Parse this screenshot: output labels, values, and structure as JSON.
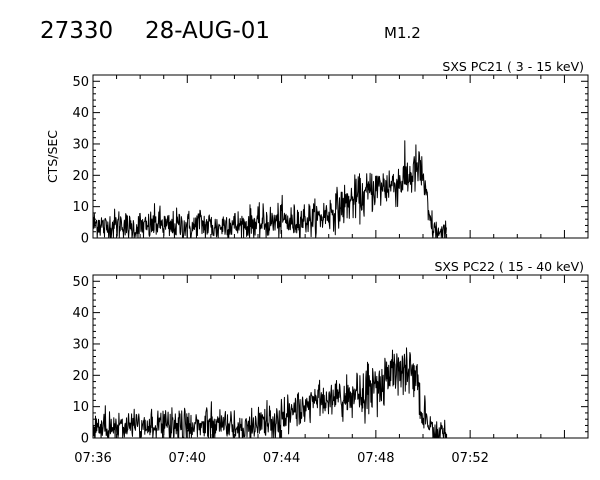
{
  "header": {
    "obs_id": "27330",
    "date": "28-AUG-01",
    "flare_class": "M1.2"
  },
  "colors": {
    "line": "#000000",
    "background": "#ffffff"
  },
  "chart_data": [
    {
      "type": "line",
      "title": "SXS PC21  (  3 - 15 keV)",
      "ylabel": "CTS/SEC",
      "xlabel": "",
      "xlim": [
        "07:36",
        "07:57"
      ],
      "ylim": [
        0,
        52
      ],
      "yticks": [
        0,
        10,
        20,
        30,
        40,
        50
      ],
      "xticks": [
        "07:36",
        "07:40",
        "07:44",
        "07:48",
        "07:52"
      ],
      "show_xtick_labels": false,
      "grid": false,
      "series": [
        {
          "values_start": "07:36",
          "values_step_minutes": 0.25,
          "values": [
            4,
            5,
            3,
            4,
            4,
            5,
            3,
            3,
            4,
            3,
            4,
            5,
            4,
            3,
            4,
            4,
            4,
            3,
            5,
            4,
            4,
            3,
            4,
            5,
            4,
            4,
            4,
            5,
            4,
            5,
            5,
            5,
            6,
            5,
            5,
            6,
            6,
            6,
            6,
            7,
            8,
            9,
            10,
            11,
            12,
            13,
            13,
            15,
            16,
            16,
            17,
            17,
            18,
            19,
            20,
            22,
            20,
            6,
            2,
            1,
            1
          ]
        }
      ]
    },
    {
      "type": "line",
      "title": "SXS PC22  ( 15 - 40 keV)",
      "ylabel": "",
      "xlabel": "",
      "xlim": [
        "07:36",
        "07:57"
      ],
      "ylim": [
        0,
        52
      ],
      "yticks": [
        0,
        10,
        20,
        30,
        40,
        50
      ],
      "xticks": [
        "07:36",
        "07:40",
        "07:44",
        "07:48",
        "07:52"
      ],
      "show_xtick_labels": true,
      "grid": false,
      "series": [
        {
          "values_start": "07:36",
          "values_step_minutes": 0.25,
          "values": [
            4,
            3,
            4,
            4,
            3,
            4,
            4,
            3,
            4,
            3,
            4,
            4,
            4,
            3,
            4,
            3,
            4,
            4,
            3,
            4,
            4,
            3,
            4,
            4,
            3,
            4,
            4,
            4,
            5,
            5,
            6,
            6,
            7,
            7,
            8,
            9,
            10,
            11,
            12,
            12,
            13,
            13,
            14,
            14,
            13,
            14,
            15,
            15,
            17,
            18,
            19,
            21,
            22,
            23,
            22,
            17,
            8,
            3,
            2,
            1,
            1
          ]
        }
      ]
    }
  ]
}
